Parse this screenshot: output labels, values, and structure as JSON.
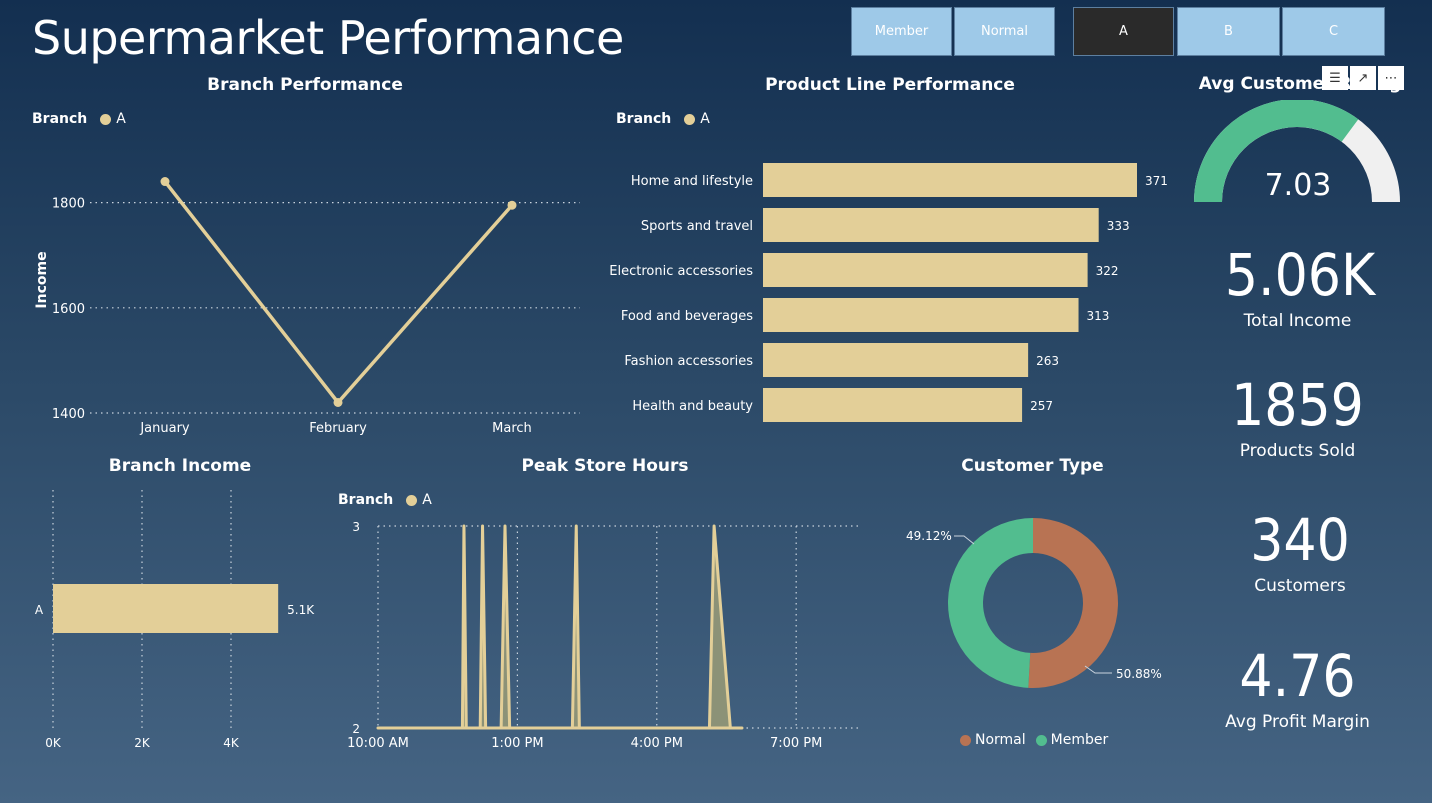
{
  "title": "Supermarket Performance",
  "slicers": [
    {
      "label": "Member",
      "selected": false
    },
    {
      "label": "Normal",
      "selected": false
    },
    {
      "label": "A",
      "selected": true
    },
    {
      "label": "B",
      "selected": false
    },
    {
      "label": "C",
      "selected": false
    }
  ],
  "colors": {
    "series": "#e3cf98",
    "normal": "#b87353",
    "member": "#52bd8f",
    "gauge_track": "#f0f0f0",
    "selected_button": "#2a2a2a",
    "button": "#9ec9e8"
  },
  "legend": {
    "title": "Branch",
    "item": "A"
  },
  "icons": [
    "filter-icon",
    "focus-mode-icon",
    "more-options-icon"
  ],
  "branch_performance": {
    "title": "Branch Performance",
    "chart_data": {
      "type": "line",
      "categories": [
        "January",
        "February",
        "March"
      ],
      "series": [
        {
          "name": "A",
          "values": [
            1840,
            1420,
            1795
          ]
        }
      ],
      "ylabel": "Income",
      "yticks": [
        1400,
        1600,
        1800
      ],
      "ylim": [
        1400,
        1900
      ]
    }
  },
  "product_line": {
    "title": "Product Line Performance",
    "chart_data": {
      "type": "bar",
      "categories": [
        "Home and lifestyle",
        "Sports and travel",
        "Electronic accessories",
        "Food and beverages",
        "Fashion accessories",
        "Health and beauty"
      ],
      "values": [
        371,
        333,
        322,
        313,
        263,
        257
      ],
      "value_labels": [
        "371",
        "333",
        "322",
        "313",
        "263",
        "257"
      ],
      "xlim": [
        0,
        371
      ]
    }
  },
  "gauge": {
    "title": "Avg Customer Rating",
    "value": 7.03,
    "value_label": "7.03",
    "min": 0,
    "max": 10
  },
  "kpis": [
    {
      "value": "5.06K",
      "label": "Total Income"
    },
    {
      "value": "1859",
      "label": "Products Sold"
    },
    {
      "value": "340",
      "label": "Customers"
    },
    {
      "value": "4.76",
      "label": "Avg Profit Margin"
    }
  ],
  "branch_income": {
    "title": "Branch Income",
    "chart_data": {
      "type": "bar",
      "categories": [
        "A"
      ],
      "values": [
        5060
      ],
      "value_labels": [
        "5.1K"
      ],
      "xticks": [
        "0K",
        "2K",
        "4K"
      ],
      "xtick_values": [
        0,
        2000,
        4000
      ],
      "xlim": [
        0,
        5700
      ]
    }
  },
  "peak_hours": {
    "title": "Peak Store Hours",
    "chart_data": {
      "type": "area",
      "x_ticks": [
        "10:00 AM",
        "1:00 PM",
        "4:00 PM",
        "7:00 PM"
      ],
      "x_tick_values": [
        600,
        780,
        960,
        1140
      ],
      "xlim": [
        600,
        1225
      ],
      "ylim": [
        2,
        3
      ],
      "yticks": [
        2,
        3
      ],
      "series": [
        {
          "name": "A",
          "points": [
            [
              600,
              2
            ],
            [
              705,
              2
            ],
            [
              709,
              2
            ],
            [
              711,
              3
            ],
            [
              714,
              2
            ],
            [
              730,
              2
            ],
            [
              732,
              2
            ],
            [
              735,
              3
            ],
            [
              739,
              2
            ],
            [
              756,
              2
            ],
            [
              759,
              2
            ],
            [
              764,
              3
            ],
            [
              770,
              2
            ],
            [
              774,
              2
            ],
            [
              848,
              2
            ],
            [
              851,
              2
            ],
            [
              856,
              3
            ],
            [
              860,
              2
            ],
            [
              1023,
              2
            ],
            [
              1028,
              2
            ],
            [
              1034,
              3
            ],
            [
              1055,
              2
            ],
            [
              1070,
              2
            ]
          ]
        }
      ]
    }
  },
  "customer_type": {
    "title": "Customer Type",
    "chart_data": {
      "type": "pie",
      "slices": [
        {
          "name": "Normal",
          "value": 50.88,
          "label": "50.88%"
        },
        {
          "name": "Member",
          "value": 49.12,
          "label": "49.12%"
        }
      ]
    },
    "legend_items": [
      "Normal",
      "Member"
    ]
  }
}
